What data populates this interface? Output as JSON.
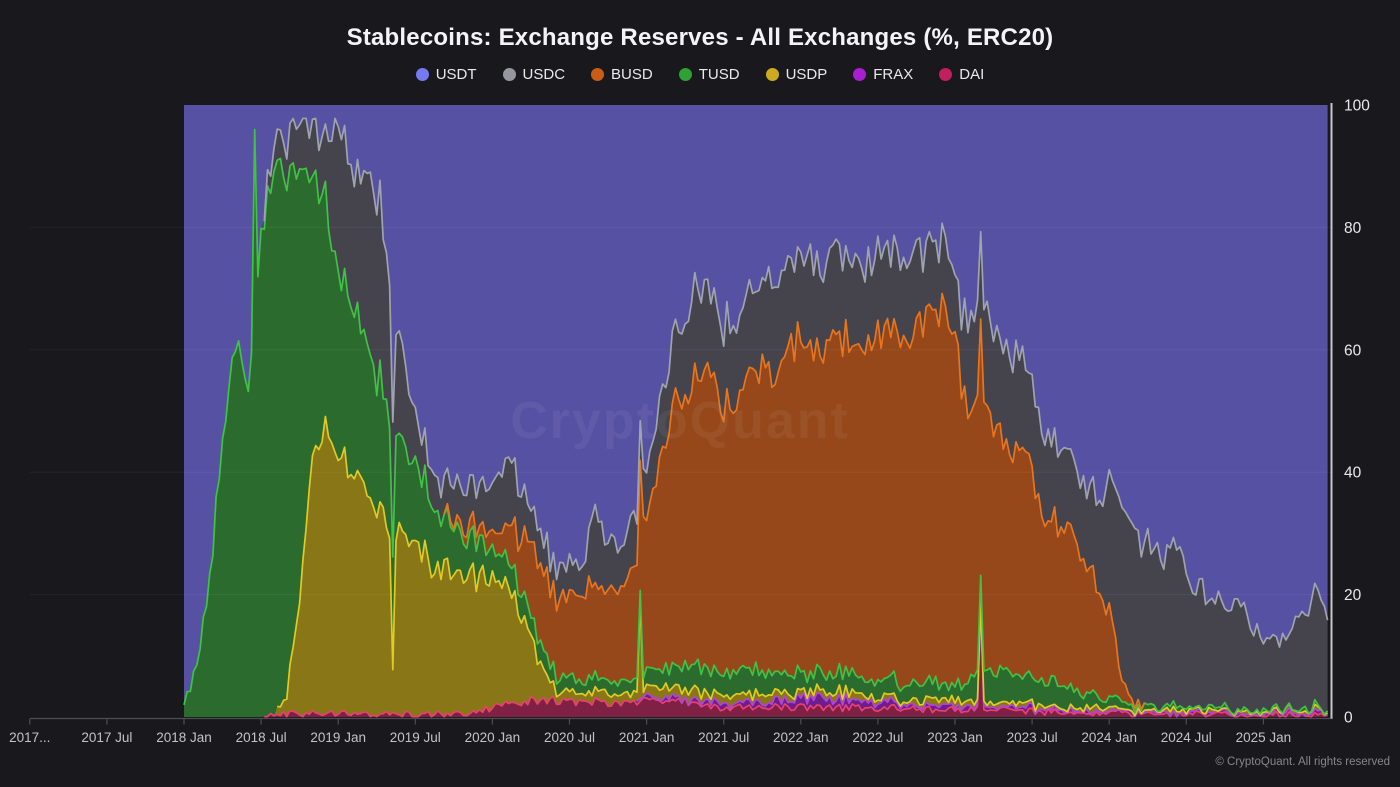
{
  "title": "Stablecoins: Exchange Reserves - All Exchanges (%, ERC20)",
  "watermark": "CryptoQuant",
  "footer": "© CryptoQuant. All rights reserved",
  "colors": {
    "background": "#19191d",
    "grid": "rgba(255,255,255,0.05)",
    "axis_baseline": "#4c4c53",
    "y_axis_line": "#c6c6cc",
    "x_tick_label": "#c2c2c8",
    "y_tick_label": "#e8e8ea",
    "title_text": "#f4f4f6",
    "watermark_text": "rgba(255,255,255,0.055)"
  },
  "legend": [
    {
      "label": "USDT",
      "dot": "#767af0"
    },
    {
      "label": "USDC",
      "dot": "#96969e"
    },
    {
      "label": "BUSD",
      "dot": "#ca5c16"
    },
    {
      "label": "TUSD",
      "dot": "#2fa135"
    },
    {
      "label": "USDP",
      "dot": "#cfa91f"
    },
    {
      "label": "FRAX",
      "dot": "#a61fd0"
    },
    {
      "label": "DAI",
      "dot": "#c21f5e"
    }
  ],
  "chart_data": {
    "type": "area",
    "stacking": "percent",
    "title": "Stablecoins: Exchange Reserves - All Exchanges (%, ERC20)",
    "x_start": "2018-01",
    "x_step": "1 month",
    "n_points": 90,
    "ylim": [
      0,
      100
    ],
    "grid": "horizontal-faint",
    "legend_position": "top-center",
    "y_axis_side": "right",
    "y_ticks": [
      0,
      20,
      40,
      60,
      80,
      100
    ],
    "x_ticks": [
      {
        "label": "2017...",
        "month": -12
      },
      {
        "label": "2017 Jul",
        "month": -6
      },
      {
        "label": "2018 Jan",
        "month": 0
      },
      {
        "label": "2018 Jul",
        "month": 6
      },
      {
        "label": "2019 Jan",
        "month": 12
      },
      {
        "label": "2019 Jul",
        "month": 18
      },
      {
        "label": "2020 Jan",
        "month": 24
      },
      {
        "label": "2020 Jul",
        "month": 30
      },
      {
        "label": "2021 Jan",
        "month": 36
      },
      {
        "label": "2021 Jul",
        "month": 42
      },
      {
        "label": "2022 Jan",
        "month": 48
      },
      {
        "label": "2022 Jul",
        "month": 54
      },
      {
        "label": "2023 Jan",
        "month": 60
      },
      {
        "label": "2023 Jul",
        "month": 66
      },
      {
        "label": "2024 Jan",
        "month": 72
      },
      {
        "label": "2024 Jul",
        "month": 78
      },
      {
        "label": "2025 Jan",
        "month": 84
      }
    ],
    "stack_order_bottom_to_top": [
      "DAI",
      "FRAX",
      "USDP",
      "TUSD",
      "BUSD",
      "USDC",
      "USDT"
    ],
    "series": [
      {
        "name": "DAI",
        "fill": "#7e2145",
        "line": "#e8416d",
        "values": [
          0,
          0,
          0,
          0,
          0,
          0,
          0,
          0.5,
          0.5,
          0.5,
          0.5,
          0.5,
          0.5,
          0.5,
          0.5,
          0.5,
          0.5,
          0.5,
          0.5,
          0.5,
          0.5,
          0.5,
          0.5,
          1,
          1.5,
          2.5,
          2.5,
          2.7,
          2.8,
          2.6,
          2.5,
          2.5,
          2.5,
          2.4,
          2.3,
          2.4,
          2.5,
          2.5,
          2.6,
          2.5,
          1.8,
          1.7,
          1.6,
          1.7,
          1.8,
          1.7,
          1.6,
          1.6,
          1.6,
          1.5,
          1.5,
          1.5,
          1.6,
          1.5,
          1.4,
          1.4,
          1.4,
          1.3,
          1.2,
          1.2,
          1.2,
          1.3,
          1.2,
          1.1,
          1.1,
          1,
          1,
          0.9,
          0.9,
          0.8,
          0.8,
          0.8,
          0.7,
          0.7,
          0.6,
          0.6,
          0.6,
          0.5,
          0.5,
          0.5,
          0.5,
          0.5,
          0.4,
          0.4,
          0.4,
          0.4,
          0.4,
          0.4,
          0.4,
          0.4
        ]
      },
      {
        "name": "FRAX",
        "fill": "#6e1d8e",
        "line": "#b044d8",
        "values": [
          0,
          0,
          0,
          0,
          0,
          0,
          0,
          0,
          0,
          0,
          0,
          0,
          0,
          0,
          0,
          0,
          0,
          0,
          0,
          0,
          0,
          0,
          0,
          0,
          0,
          0,
          0,
          0,
          0,
          0,
          0,
          0,
          0,
          0,
          0,
          0,
          0.3,
          0.4,
          0.5,
          0.5,
          0.5,
          0.6,
          0.6,
          0.7,
          0.8,
          0.9,
          1,
          1.2,
          1.4,
          1.5,
          1.4,
          1.3,
          1.2,
          1,
          0.9,
          0.9,
          0.8,
          0.8,
          0.7,
          0.7,
          0.7,
          0.6,
          0.6,
          0.5,
          0.5,
          0.5,
          0.4,
          0.4,
          0.4,
          0.4,
          0.3,
          0.3,
          0.3,
          0.3,
          0.3,
          0.2,
          0.2,
          0.2,
          0.2,
          0.2,
          0.2,
          0.2,
          0.2,
          0.2,
          0.2,
          0.2,
          0.2,
          0.2,
          0.2,
          0.2
        ]
      },
      {
        "name": "USDP",
        "fill": "#887617",
        "line": "#e0ca25",
        "values": [
          0,
          0,
          0,
          0,
          0,
          0,
          0,
          0,
          3,
          20,
          42,
          48,
          42,
          39,
          37,
          34,
          31,
          29,
          27,
          25.5,
          24,
          23.5,
          22.5,
          22,
          21.5,
          20,
          16,
          10,
          5,
          1.6,
          1.5,
          1.4,
          1.4,
          1.4,
          1.4,
          1.4,
          1.4,
          1.4,
          1.5,
          1.5,
          1.4,
          1.3,
          1.3,
          1.2,
          1.2,
          1.2,
          1.1,
          1.1,
          1.1,
          1,
          1,
          1,
          1,
          1,
          0.9,
          0.9,
          0.9,
          0.8,
          0.8,
          0.8,
          0.8,
          0.8,
          0.7,
          0.7,
          0.7,
          0.6,
          0.6,
          0.6,
          0.5,
          0.5,
          0.5,
          0.5,
          0.4,
          0.4,
          0.4,
          0.4,
          0.3,
          0.3,
          0.3,
          0.3,
          0.3,
          0.3,
          0.3,
          0.3,
          0.3,
          0.3,
          0.3,
          0.3,
          0.3,
          0.3
        ]
      },
      {
        "name": "TUSD",
        "fill": "#2b6c2e",
        "line": "#3fc246",
        "values": [
          2,
          8,
          22,
          45,
          62,
          55,
          78,
          90,
          85,
          70,
          46,
          38,
          30,
          28,
          25,
          22,
          18,
          15,
          13,
          11,
          9,
          7,
          6,
          5.5,
          5,
          4.5,
          4,
          3.5,
          3,
          2.6,
          2.2,
          2,
          2,
          2,
          2.2,
          2.4,
          2.5,
          3,
          3.5,
          4,
          4.2,
          4,
          3.5,
          3.6,
          3.8,
          3.5,
          3.4,
          3.2,
          3.2,
          3,
          3,
          3.1,
          3,
          2.8,
          2.8,
          2.9,
          2.8,
          2.7,
          2.8,
          2.6,
          2.5,
          3.5,
          5,
          5.5,
          5,
          4.5,
          4.5,
          4.2,
          4,
          3.5,
          2.5,
          2,
          1.5,
          1.2,
          0.9,
          0.7,
          0.6,
          0.6,
          0.5,
          0.5,
          0.4,
          0.4,
          0.4,
          0.3,
          0.3,
          0.3,
          0.3,
          0.3,
          0.3,
          0.3
        ]
      },
      {
        "name": "BUSD",
        "fill": "#96481b",
        "line": "#e8751d",
        "values": [
          0,
          0,
          0,
          0,
          0,
          0,
          0,
          0,
          0,
          0,
          0,
          0,
          0,
          0,
          0,
          0,
          0,
          0,
          0,
          0,
          0,
          1,
          1.5,
          2,
          3,
          5,
          8,
          11,
          13,
          13,
          12.5,
          14,
          15,
          14.5,
          15.5,
          18,
          26,
          33,
          42,
          45,
          48,
          47,
          43.5,
          45,
          48,
          51,
          49,
          53,
          54.5,
          53,
          54,
          54.5,
          55,
          53.5,
          56,
          57,
          56,
          58,
          60.5,
          61,
          58,
          42.5,
          44,
          40,
          38,
          36,
          34,
          27,
          25,
          24.5,
          23,
          17,
          14,
          3,
          0.5,
          0,
          0,
          0,
          0,
          0,
          0,
          0,
          0,
          0,
          0,
          0,
          0,
          0,
          0,
          0
        ]
      },
      {
        "name": "USDC",
        "fill": "#45444d",
        "line": "#9fa3ad",
        "values": [
          0,
          0,
          0,
          0,
          0,
          0,
          0,
          4,
          6,
          7.5,
          8.5,
          10.5,
          24,
          23,
          26,
          32,
          22,
          15,
          7,
          6,
          5.5,
          6,
          6,
          6.5,
          7,
          11,
          8,
          6,
          5,
          5,
          5,
          5,
          12,
          8,
          7,
          8,
          7,
          9,
          11,
          13,
          14,
          13,
          13,
          14,
          14,
          14,
          15,
          14,
          14,
          14,
          13.5,
          14,
          13.5,
          13,
          13.5,
          13,
          13,
          12.5,
          11.5,
          11,
          10.5,
          15,
          15,
          16,
          15,
          15,
          15,
          14,
          13,
          12,
          12,
          15,
          20,
          28,
          27,
          26,
          24.5,
          25.5,
          22.5,
          19.7,
          18.2,
          16.8,
          17.4,
          13.9,
          12,
          10.6,
          12.7,
          15.2,
          18.2,
          16.7
        ]
      },
      {
        "name": "USDT",
        "fill": "#5751a3",
        "line": "#5751a3",
        "values": "remainder-to-100"
      }
    ],
    "spikes": [
      {
        "series": "TUSD",
        "pos_month": 5.4,
        "value": 96
      },
      {
        "series": "USDP",
        "pos_month": 16.3,
        "value": 7
      },
      {
        "series": "USDP",
        "pos_month": 35.5,
        "value": 16
      },
      {
        "series": "DAI",
        "pos_month": 61.9,
        "value": 18
      }
    ]
  }
}
